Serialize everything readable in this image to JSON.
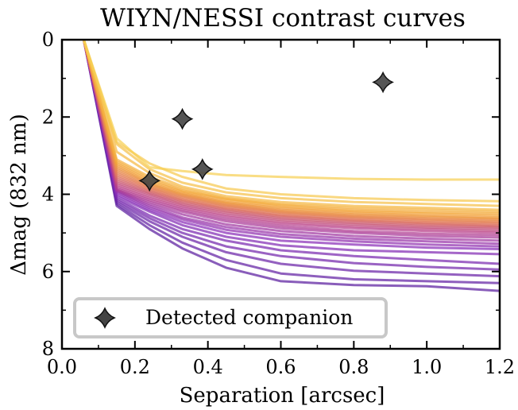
{
  "chart_data": {
    "type": "line",
    "title": "WIYN/NESSI contrast curves",
    "xlabel": "Separation [arcsec]",
    "ylabel": "Δmag (832 nm)",
    "xlim": [
      0.0,
      1.2
    ],
    "ylim": [
      8,
      0
    ],
    "y_inverted": true,
    "x_ticks": [
      "0.0",
      "0.2",
      "0.4",
      "0.6",
      "0.8",
      "1.0",
      "1.2"
    ],
    "y_ticks": [
      "0",
      "2",
      "4",
      "6",
      "8"
    ],
    "grid": false,
    "legend_position": "bottom-left",
    "colormap": [
      "#5b1ea0",
      "#8a2fb8",
      "#b8408a",
      "#e07a5f",
      "#f2a33a",
      "#f7d054"
    ],
    "x": [
      0.06,
      0.15,
      0.24,
      0.33,
      0.45,
      0.6,
      0.8,
      1.0,
      1.2
    ],
    "series": [
      {
        "values": [
          0.0,
          2.55,
          3.3,
          3.4,
          3.5,
          3.55,
          3.6,
          3.62,
          3.62
        ]
      },
      {
        "values": [
          0.0,
          2.65,
          3.2,
          3.55,
          3.85,
          4.0,
          4.1,
          4.15,
          4.18
        ]
      },
      {
        "values": [
          0.0,
          2.7,
          3.35,
          3.7,
          3.95,
          4.1,
          4.2,
          4.25,
          4.3
        ]
      },
      {
        "values": [
          0.0,
          2.9,
          3.45,
          3.8,
          4.05,
          4.2,
          4.3,
          4.35,
          4.4
        ]
      },
      {
        "values": [
          0.0,
          3.1,
          3.55,
          3.85,
          4.1,
          4.25,
          4.35,
          4.4,
          4.45
        ]
      },
      {
        "values": [
          0.0,
          3.15,
          3.6,
          3.9,
          4.12,
          4.28,
          4.4,
          4.46,
          4.5
        ]
      },
      {
        "values": [
          0.0,
          3.2,
          3.65,
          3.93,
          4.15,
          4.32,
          4.44,
          4.5,
          4.55
        ]
      },
      {
        "values": [
          0.0,
          3.25,
          3.7,
          3.97,
          4.2,
          4.36,
          4.48,
          4.55,
          4.6
        ]
      },
      {
        "values": [
          0.0,
          3.3,
          3.73,
          4.0,
          4.22,
          4.4,
          4.52,
          4.58,
          4.63
        ]
      },
      {
        "values": [
          0.0,
          3.35,
          3.76,
          4.02,
          4.25,
          4.43,
          4.55,
          4.62,
          4.66
        ]
      },
      {
        "values": [
          0.0,
          3.4,
          3.8,
          4.05,
          4.28,
          4.46,
          4.58,
          4.65,
          4.7
        ]
      },
      {
        "values": [
          0.0,
          3.45,
          3.83,
          4.08,
          4.3,
          4.48,
          4.6,
          4.68,
          4.73
        ]
      },
      {
        "values": [
          0.0,
          3.5,
          3.86,
          4.12,
          4.34,
          4.52,
          4.64,
          4.72,
          4.76
        ]
      },
      {
        "values": [
          0.0,
          3.55,
          3.9,
          4.15,
          4.37,
          4.55,
          4.67,
          4.75,
          4.8
        ]
      },
      {
        "values": [
          0.0,
          3.6,
          3.93,
          4.18,
          4.4,
          4.58,
          4.7,
          4.78,
          4.83
        ]
      },
      {
        "values": [
          0.0,
          3.65,
          3.97,
          4.22,
          4.44,
          4.62,
          4.74,
          4.82,
          4.86
        ]
      },
      {
        "values": [
          0.0,
          3.7,
          4.0,
          4.26,
          4.48,
          4.66,
          4.78,
          4.86,
          4.9
        ]
      },
      {
        "values": [
          0.0,
          3.75,
          4.05,
          4.3,
          4.53,
          4.71,
          4.83,
          4.9,
          4.95
        ]
      },
      {
        "values": [
          0.0,
          3.8,
          4.1,
          4.35,
          4.58,
          4.76,
          4.88,
          4.95,
          5.0
        ]
      },
      {
        "values": [
          0.0,
          3.85,
          4.15,
          4.4,
          4.64,
          4.82,
          4.95,
          5.02,
          5.06
        ]
      },
      {
        "values": [
          0.0,
          3.88,
          4.2,
          4.45,
          4.7,
          4.88,
          5.0,
          5.08,
          5.12
        ]
      },
      {
        "values": [
          0.0,
          3.9,
          4.25,
          4.52,
          4.78,
          4.95,
          5.08,
          5.15,
          5.2
        ]
      },
      {
        "values": [
          0.0,
          3.92,
          4.3,
          4.6,
          4.85,
          5.03,
          5.15,
          5.22,
          5.28
        ]
      },
      {
        "values": [
          0.0,
          3.95,
          4.35,
          4.65,
          4.92,
          5.1,
          5.22,
          5.3,
          5.35
        ]
      },
      {
        "values": [
          0.0,
          4.0,
          4.4,
          4.72,
          5.0,
          5.2,
          5.3,
          5.38,
          5.42
        ]
      },
      {
        "values": [
          0.0,
          4.05,
          4.45,
          4.8,
          5.1,
          5.32,
          5.45,
          5.5,
          5.55
        ]
      },
      {
        "values": [
          0.0,
          4.1,
          4.55,
          4.9,
          5.2,
          5.45,
          5.6,
          5.7,
          5.8
        ]
      },
      {
        "values": [
          0.0,
          4.15,
          4.62,
          5.0,
          5.35,
          5.6,
          5.78,
          5.88,
          5.95
        ]
      },
      {
        "values": [
          0.0,
          4.2,
          4.7,
          5.1,
          5.5,
          5.8,
          5.98,
          6.05,
          6.12
        ]
      },
      {
        "values": [
          0.0,
          4.25,
          4.8,
          5.25,
          5.7,
          6.05,
          6.2,
          6.25,
          6.3
        ]
      },
      {
        "values": [
          0.0,
          4.3,
          4.9,
          5.4,
          5.9,
          6.25,
          6.35,
          6.38,
          6.5
        ]
      }
    ],
    "companions": {
      "label": "Detected companion",
      "points": [
        {
          "x": 0.24,
          "y": 3.65
        },
        {
          "x": 0.33,
          "y": 2.05
        },
        {
          "x": 0.385,
          "y": 3.35
        },
        {
          "x": 0.88,
          "y": 1.1
        }
      ]
    }
  }
}
